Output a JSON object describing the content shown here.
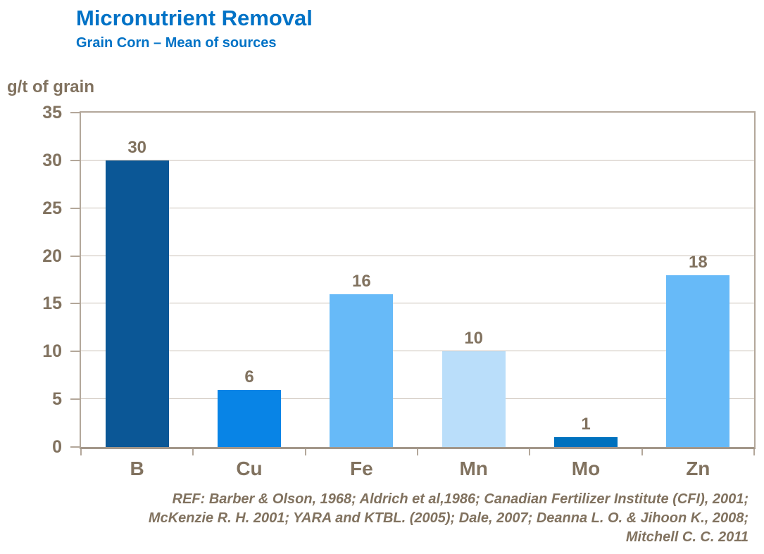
{
  "header": {
    "title": "Micronutrient Removal",
    "subtitle": "Grain Corn – Mean of sources"
  },
  "chart_data": {
    "type": "bar",
    "title": "Micronutrient Removal",
    "subtitle": "Grain Corn – Mean of sources",
    "ylabel": "g/t of grain",
    "xlabel": "",
    "categories": [
      "B",
      "Cu",
      "Fe",
      "Mn",
      "Mo",
      "Zn"
    ],
    "values": [
      30,
      6,
      16,
      10,
      1,
      18
    ],
    "bar_colors": [
      "#0B5796",
      "#0884E6",
      "#67BAF8",
      "#BADEFA",
      "#0071BE",
      "#67BAF8"
    ],
    "ylim": [
      0,
      35
    ],
    "yticks": [
      0,
      5,
      10,
      15,
      20,
      25,
      30,
      35
    ],
    "ytick_interval": 5,
    "grid": true,
    "legend": "none",
    "data_labels_shown": true
  },
  "footer": {
    "reference_lines": [
      "REF: Barber & Olson, 1968; Aldrich et al,1986; Canadian Fertilizer Institute (CFI), 2001;",
      "McKenzie R. H. 2001; YARA and KTBL. (2005); Dale, 2007; Deanna L. O. & Jihoon K.,  2008;",
      "Mitchell C. C. 2011"
    ]
  },
  "colors": {
    "title": "#0072C6",
    "text": "#81725F",
    "grid": "#C9BFB5",
    "axis": "#B3A79A",
    "axisdark": "#A3978A"
  }
}
